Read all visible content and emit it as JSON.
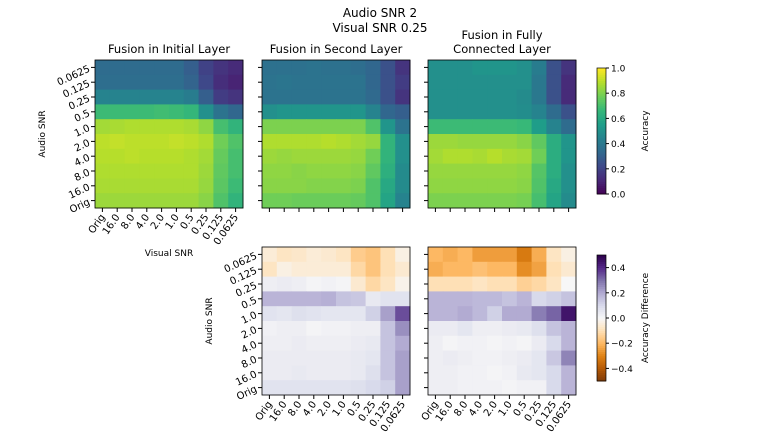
{
  "suptitle": [
    "Audio SNR 2",
    "Visual SNR 0.25"
  ],
  "chart_data": [
    {
      "type": "heatmap",
      "title": "Fusion in Initial Layer",
      "xlabel": "Visual SNR",
      "ylabel": "Audio SNR",
      "x_ticks": [
        "Orig",
        "16.0",
        "8.0",
        "4.0",
        "2.0",
        "1.0",
        "0.5",
        "0.25",
        "0.125",
        "0.0625"
      ],
      "y_ticks": [
        "0.0625",
        "0.125",
        "0.25",
        "0.5",
        "1.0",
        "2.0",
        "4.0",
        "8.0",
        "16.0",
        "Orig"
      ],
      "colormap": "viridis",
      "clim": [
        0,
        1
      ],
      "values": [
        [
          0.35,
          0.35,
          0.35,
          0.35,
          0.35,
          0.35,
          0.3,
          0.2,
          0.15,
          0.12
        ],
        [
          0.36,
          0.36,
          0.36,
          0.36,
          0.36,
          0.36,
          0.32,
          0.22,
          0.13,
          0.1
        ],
        [
          0.45,
          0.45,
          0.45,
          0.45,
          0.45,
          0.45,
          0.42,
          0.3,
          0.18,
          0.15
        ],
        [
          0.68,
          0.68,
          0.68,
          0.68,
          0.69,
          0.68,
          0.66,
          0.5,
          0.38,
          0.33
        ],
        [
          0.86,
          0.87,
          0.88,
          0.88,
          0.88,
          0.88,
          0.87,
          0.83,
          0.7,
          0.65
        ],
        [
          0.9,
          0.91,
          0.9,
          0.9,
          0.9,
          0.91,
          0.9,
          0.88,
          0.78,
          0.72
        ],
        [
          0.89,
          0.89,
          0.9,
          0.89,
          0.89,
          0.89,
          0.88,
          0.86,
          0.76,
          0.7
        ],
        [
          0.88,
          0.88,
          0.88,
          0.88,
          0.88,
          0.88,
          0.88,
          0.85,
          0.75,
          0.7
        ],
        [
          0.87,
          0.87,
          0.87,
          0.87,
          0.87,
          0.87,
          0.87,
          0.84,
          0.74,
          0.68
        ],
        [
          0.85,
          0.85,
          0.85,
          0.85,
          0.85,
          0.85,
          0.85,
          0.82,
          0.72,
          0.65
        ]
      ]
    },
    {
      "type": "heatmap",
      "title": "Fusion in Second Layer",
      "x_ticks": [
        "Orig",
        "16.0",
        "8.0",
        "4.0",
        "2.0",
        "1.0",
        "0.5",
        "0.25",
        "0.125",
        "0.0625"
      ],
      "colormap": "viridis",
      "clim": [
        0,
        1
      ],
      "values": [
        [
          0.37,
          0.37,
          0.37,
          0.38,
          0.37,
          0.37,
          0.36,
          0.33,
          0.25,
          0.15
        ],
        [
          0.38,
          0.39,
          0.38,
          0.38,
          0.38,
          0.38,
          0.38,
          0.33,
          0.25,
          0.18
        ],
        [
          0.38,
          0.38,
          0.38,
          0.38,
          0.38,
          0.38,
          0.38,
          0.34,
          0.25,
          0.15
        ],
        [
          0.5,
          0.52,
          0.52,
          0.52,
          0.52,
          0.52,
          0.52,
          0.45,
          0.33,
          0.3
        ],
        [
          0.8,
          0.8,
          0.8,
          0.8,
          0.8,
          0.8,
          0.8,
          0.72,
          0.52,
          0.38
        ],
        [
          0.88,
          0.88,
          0.88,
          0.88,
          0.89,
          0.88,
          0.86,
          0.84,
          0.65,
          0.5
        ],
        [
          0.85,
          0.84,
          0.85,
          0.85,
          0.85,
          0.85,
          0.84,
          0.78,
          0.65,
          0.5
        ],
        [
          0.83,
          0.83,
          0.82,
          0.83,
          0.83,
          0.83,
          0.82,
          0.75,
          0.63,
          0.48
        ],
        [
          0.82,
          0.82,
          0.82,
          0.81,
          0.81,
          0.81,
          0.8,
          0.72,
          0.6,
          0.48
        ],
        [
          0.78,
          0.78,
          0.77,
          0.77,
          0.77,
          0.77,
          0.76,
          0.72,
          0.58,
          0.45
        ]
      ]
    },
    {
      "type": "heatmap",
      "title": "Fusion in Fully\nConnected Layer",
      "x_ticks": [
        "Orig",
        "16.0",
        "8.0",
        "4.0",
        "2.0",
        "1.0",
        "0.5",
        "0.25",
        "0.125",
        "0.0625"
      ],
      "colormap": "viridis",
      "clim": [
        0,
        1
      ],
      "values": [
        [
          0.5,
          0.5,
          0.5,
          0.52,
          0.52,
          0.52,
          0.5,
          0.42,
          0.25,
          0.15
        ],
        [
          0.5,
          0.5,
          0.5,
          0.5,
          0.5,
          0.5,
          0.5,
          0.4,
          0.25,
          0.12
        ],
        [
          0.5,
          0.5,
          0.5,
          0.5,
          0.5,
          0.5,
          0.48,
          0.4,
          0.25,
          0.12
        ],
        [
          0.5,
          0.5,
          0.5,
          0.5,
          0.5,
          0.5,
          0.49,
          0.45,
          0.35,
          0.25
        ],
        [
          0.68,
          0.68,
          0.68,
          0.68,
          0.68,
          0.68,
          0.67,
          0.55,
          0.45,
          0.35
        ],
        [
          0.85,
          0.85,
          0.84,
          0.84,
          0.84,
          0.84,
          0.82,
          0.75,
          0.62,
          0.52
        ],
        [
          0.86,
          0.88,
          0.88,
          0.87,
          0.89,
          0.87,
          0.86,
          0.78,
          0.62,
          0.52
        ],
        [
          0.84,
          0.84,
          0.84,
          0.84,
          0.84,
          0.84,
          0.83,
          0.73,
          0.62,
          0.5
        ],
        [
          0.83,
          0.83,
          0.83,
          0.83,
          0.83,
          0.83,
          0.82,
          0.72,
          0.6,
          0.5
        ],
        [
          0.8,
          0.8,
          0.8,
          0.8,
          0.8,
          0.8,
          0.79,
          0.7,
          0.58,
          0.48
        ]
      ]
    },
    {
      "type": "heatmap",
      "xlabel": "Visual SNR",
      "ylabel": "Audio SNR",
      "x_ticks": [
        "Orig",
        "16.0",
        "8.0",
        "4.0",
        "2.0",
        "1.0",
        "0.5",
        "0.25",
        "0.125",
        "0.0625"
      ],
      "y_ticks": [
        "0.0625",
        "0.125",
        "0.25",
        "0.5",
        "1.0",
        "2.0",
        "4.0",
        "8.0",
        "16.0",
        "Orig"
      ],
      "colormap": "PuOr",
      "clim": [
        -0.5,
        0.5
      ],
      "values": [
        [
          -0.05,
          -0.08,
          -0.07,
          -0.05,
          -0.06,
          -0.08,
          -0.15,
          -0.17,
          -0.1,
          -0.03
        ],
        [
          -0.08,
          -0.03,
          -0.05,
          -0.05,
          -0.05,
          -0.05,
          -0.12,
          -0.17,
          -0.1,
          -0.06
        ],
        [
          0.03,
          0.04,
          0.03,
          0.01,
          0.02,
          0.01,
          -0.06,
          -0.12,
          -0.08,
          -0.02
        ],
        [
          0.18,
          0.18,
          0.18,
          0.18,
          0.19,
          0.15,
          0.14,
          0.05,
          0.07,
          0.07
        ],
        [
          0.07,
          0.06,
          0.08,
          0.07,
          0.06,
          0.06,
          0.06,
          0.12,
          0.22,
          0.35
        ],
        [
          0.02,
          0.03,
          0.03,
          0.01,
          0.02,
          0.02,
          0.03,
          0.03,
          0.15,
          0.25
        ],
        [
          0.03,
          0.03,
          0.04,
          0.03,
          0.03,
          0.03,
          0.04,
          0.05,
          0.15,
          0.2
        ],
        [
          0.04,
          0.04,
          0.04,
          0.04,
          0.04,
          0.04,
          0.05,
          0.06,
          0.15,
          0.22
        ],
        [
          0.04,
          0.04,
          0.05,
          0.04,
          0.04,
          0.04,
          0.05,
          0.08,
          0.15,
          0.22
        ],
        [
          0.07,
          0.07,
          0.07,
          0.07,
          0.07,
          0.07,
          0.08,
          0.1,
          0.12,
          0.22
        ]
      ]
    },
    {
      "type": "heatmap",
      "xlabel": "Visual SNR",
      "x_ticks": [
        "Orig",
        "16.0",
        "8.0",
        "4.0",
        "2.0",
        "1.0",
        "0.5",
        "0.25",
        "0.125",
        "0.0625"
      ],
      "colormap": "PuOr",
      "clim": [
        -0.5,
        0.5
      ],
      "values": [
        [
          -0.2,
          -0.22,
          -0.2,
          -0.25,
          -0.25,
          -0.25,
          -0.32,
          -0.22,
          -0.08,
          -0.03
        ],
        [
          -0.22,
          -0.2,
          -0.2,
          -0.18,
          -0.2,
          -0.2,
          -0.28,
          -0.24,
          -0.1,
          -0.06
        ],
        [
          -0.1,
          -0.1,
          -0.1,
          -0.08,
          -0.1,
          -0.1,
          -0.14,
          -0.12,
          -0.08,
          0.0
        ],
        [
          0.18,
          0.18,
          0.18,
          0.17,
          0.17,
          0.15,
          0.18,
          0.1,
          0.12,
          0.15
        ],
        [
          0.18,
          0.18,
          0.2,
          0.17,
          0.12,
          0.2,
          0.2,
          0.28,
          0.32,
          0.45
        ],
        [
          0.04,
          0.04,
          0.06,
          0.03,
          0.03,
          0.04,
          0.05,
          0.08,
          0.15,
          0.18
        ],
        [
          0.03,
          0.01,
          0.02,
          0.02,
          0.01,
          0.02,
          0.01,
          0.04,
          0.1,
          0.18
        ],
        [
          0.03,
          0.04,
          0.03,
          0.02,
          0.02,
          0.03,
          0.04,
          0.06,
          0.14,
          0.27
        ],
        [
          0.03,
          0.03,
          0.02,
          0.02,
          0.01,
          0.02,
          0.05,
          0.06,
          0.1,
          0.18
        ],
        [
          0.03,
          0.03,
          0.02,
          0.02,
          0.02,
          0.01,
          0.02,
          0.02,
          0.1,
          0.18
        ]
      ]
    }
  ],
  "colorbars": [
    {
      "label": "Accuracy",
      "colormap": "viridis",
      "ticks": [
        "0.0",
        "0.2",
        "0.4",
        "0.6",
        "0.8",
        "1.0"
      ],
      "range": [
        0,
        1
      ]
    },
    {
      "label": "Accuracy Difference",
      "colormap": "PuOr",
      "ticks": [
        "−0.4",
        "−0.2",
        "0.0",
        "0.2",
        "0.4"
      ],
      "range": [
        -0.5,
        0.5
      ]
    }
  ]
}
